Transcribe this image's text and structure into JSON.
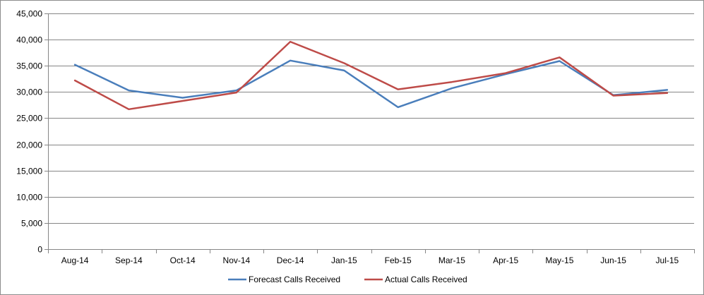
{
  "chart_data": {
    "type": "line",
    "categories": [
      "Aug-14",
      "Sep-14",
      "Oct-14",
      "Nov-14",
      "Dec-14",
      "Jan-15",
      "Feb-15",
      "Mar-15",
      "Apr-15",
      "May-15",
      "Jun-15",
      "Jul-15"
    ],
    "series": [
      {
        "name": "Forecast Calls Received",
        "color": "#4a7ebb",
        "values": [
          35200,
          30300,
          28900,
          30300,
          36000,
          34100,
          27100,
          30700,
          33400,
          35900,
          29400,
          30400
        ]
      },
      {
        "name": "Actual Calls Received",
        "color": "#be4b48",
        "values": [
          32200,
          26700,
          28300,
          29900,
          39600,
          35500,
          30500,
          31900,
          33600,
          36600,
          29300,
          29800
        ]
      }
    ],
    "ylim": [
      0,
      45000
    ],
    "yticks": [
      0,
      5000,
      10000,
      15000,
      20000,
      25000,
      30000,
      35000,
      40000,
      45000
    ],
    "ytick_labels": [
      "0",
      "5,000",
      "10,000",
      "15,000",
      "20,000",
      "25,000",
      "30,000",
      "35,000",
      "40,000",
      "45,000"
    ],
    "grid": true,
    "legend_position": "bottom"
  }
}
